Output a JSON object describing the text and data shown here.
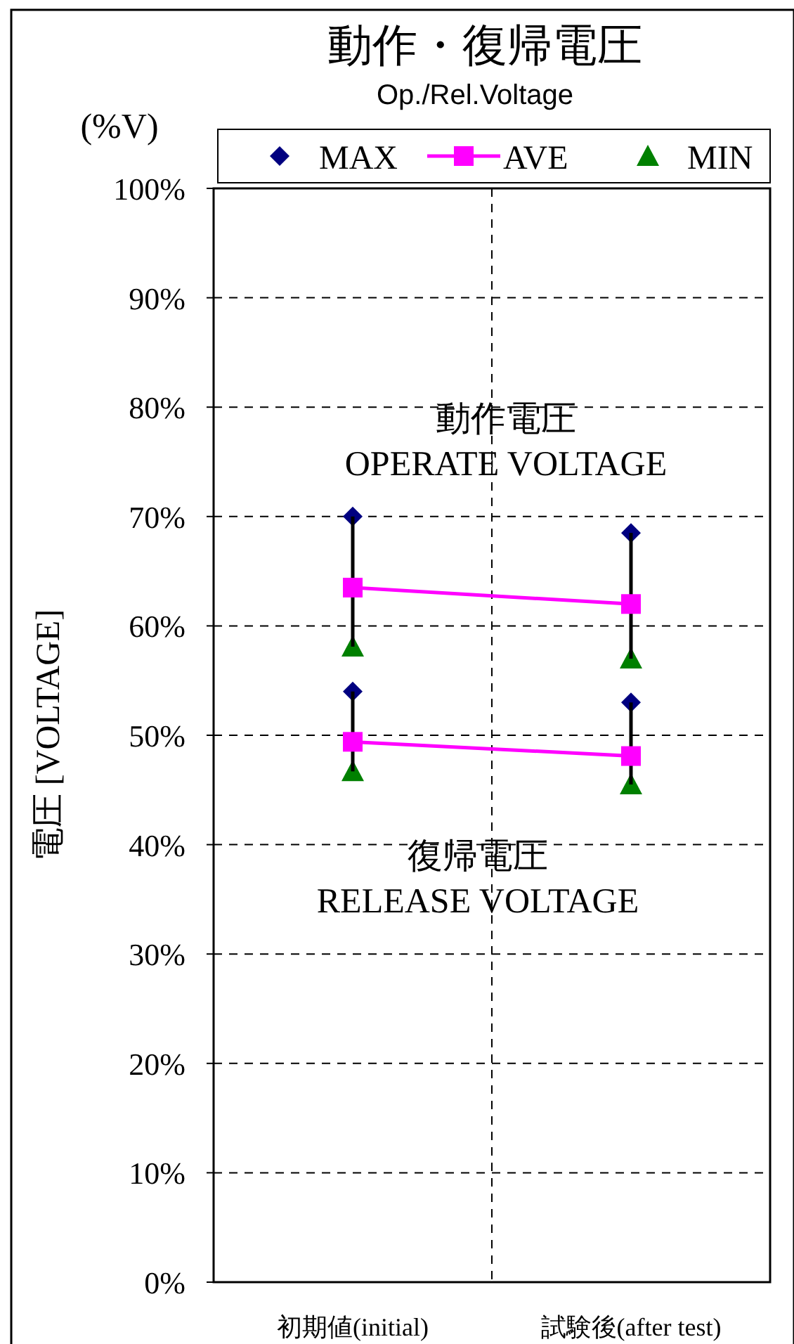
{
  "chart_data": {
    "type": "line",
    "title": "動作・復帰電圧",
    "subtitle": "Op./Rel.Voltage",
    "ylabel": "電圧 [VOLTAGE]",
    "annotations": [
      "(%V)",
      "動作電圧\nOPERATE VOLTAGE",
      "復帰電圧\nRELEASE VOLTAGE"
    ],
    "categories": [
      "初期値(initial)",
      "試験後(after test)"
    ],
    "ylim": [
      0,
      100
    ],
    "yticks": [
      {
        "value": 0,
        "label": "0%"
      },
      {
        "value": 10,
        "label": "10%"
      },
      {
        "value": 20,
        "label": "20%"
      },
      {
        "value": 30,
        "label": "30%"
      },
      {
        "value": 40,
        "label": "40%"
      },
      {
        "value": 50,
        "label": "50%"
      },
      {
        "value": 60,
        "label": "60%"
      },
      {
        "value": 70,
        "label": "70%"
      },
      {
        "value": 80,
        "label": "80%"
      },
      {
        "value": 90,
        "label": "90%"
      },
      {
        "value": 100,
        "label": "100%"
      }
    ],
    "grid": true,
    "legend": "top",
    "series": [
      {
        "name": "MAX",
        "type": "scatter",
        "marker": "diamond",
        "color": "#000080",
        "values": [
          70,
          68.5
        ]
      },
      {
        "name": "AVE",
        "marker": "square",
        "color": "#ff00ff",
        "values": [
          63.5,
          62.0
        ],
        "errors": [
          [
            58.1,
            70
          ],
          [
            57.0,
            68.5
          ]
        ]
      },
      {
        "name": "MIN",
        "type": "scatter",
        "marker": "triangle",
        "color": "#008000",
        "values": [
          58.1,
          57.0
        ]
      },
      {
        "type": "scatter",
        "marker": "diamond",
        "color": "#000080",
        "values": [
          54.0,
          53.0
        ]
      },
      {
        "marker": "square",
        "color": "#ff00ff",
        "values": [
          49.4,
          48.1
        ],
        "errors": [
          [
            46.7,
            54.0
          ],
          [
            45.5,
            53.0
          ]
        ]
      },
      {
        "type": "scatter",
        "marker": "triangle",
        "color": "#008000",
        "values": [
          46.7,
          45.5
        ]
      }
    ]
  }
}
